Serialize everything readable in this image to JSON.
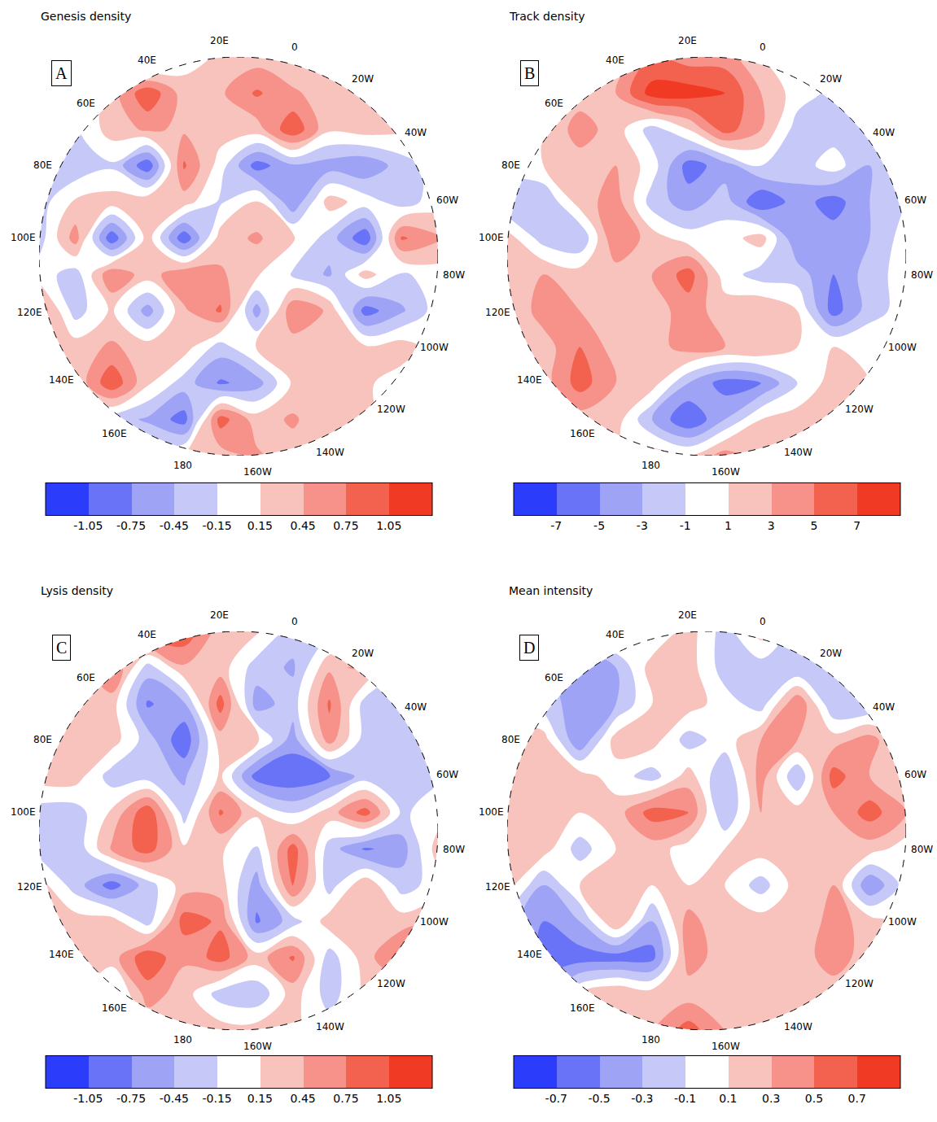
{
  "chart_data": [
    {
      "type": "contour",
      "title": "Genesis density",
      "panel": "A",
      "x": [
        -1,
        -0.818,
        -0.636,
        -0.455,
        -0.273,
        -0.091,
        0.091,
        0.273,
        0.455,
        0.636,
        0.818,
        1
      ],
      "y": [
        1,
        0.818,
        0.636,
        0.455,
        0.273,
        0.091,
        -0.091,
        -0.273,
        -0.455,
        -0.636,
        -0.818,
        -1
      ],
      "values": [
        [
          null,
          null,
          -0.5,
          -0.6,
          0,
          0.2,
          0.3,
          0.2,
          0,
          0.2,
          null,
          null
        ],
        [
          null,
          -0.3,
          0.3,
          1.0,
          0.3,
          0.4,
          0.8,
          0.5,
          0.3,
          0.3,
          0.2,
          null
        ],
        [
          0,
          -0.2,
          0.3,
          0.5,
          0.4,
          0.3,
          0.3,
          1.0,
          0.2,
          0.3,
          0.2,
          0
        ],
        [
          -0.3,
          -0.4,
          -0.2,
          -1.0,
          0.8,
          0,
          -0.9,
          -0.5,
          -0.6,
          -0.7,
          -0.3,
          0
        ],
        [
          -0.3,
          0.2,
          0.3,
          0.4,
          0.3,
          -0.2,
          0.2,
          -0.7,
          0.3,
          0,
          -0.3,
          0
        ],
        [
          -0.3,
          0.6,
          -1.0,
          0.3,
          -1.0,
          0.3,
          0.5,
          0.2,
          -0.3,
          -1.0,
          0.8,
          0.5
        ],
        [
          0,
          -0.3,
          0.7,
          0.3,
          0.7,
          0.5,
          0.2,
          -0.2,
          -0.5,
          0.3,
          -0.2,
          0
        ],
        [
          0.7,
          -0.3,
          0.2,
          -0.6,
          0.4,
          0.8,
          -0.6,
          0.7,
          0.4,
          -0.9,
          -0.5,
          0
        ],
        [
          0,
          0.3,
          0.5,
          0.3,
          0.3,
          -0.3,
          0.2,
          0.3,
          0.3,
          0.2,
          0.3,
          0
        ],
        [
          0,
          0.2,
          1.0,
          0.2,
          -0.3,
          -0.8,
          -0.6,
          0.2,
          0.3,
          0.2,
          0,
          0
        ],
        [
          null,
          0,
          -0.3,
          -0.5,
          -0.9,
          0.9,
          0.3,
          0.5,
          0.2,
          0.2,
          0,
          null
        ],
        [
          null,
          null,
          0,
          0,
          0.2,
          0.3,
          0.5,
          0.3,
          0.2,
          0,
          null,
          null
        ]
      ],
      "xlim": [
        -1,
        1
      ],
      "ylim": [
        -1,
        1
      ],
      "tick_labels": false,
      "colors": [
        "#2b3cfa",
        "#6873f7",
        "#9ea3f5",
        "#c6c8f8",
        "#ffffff",
        "#f8c3bd",
        "#f6928a",
        "#f3624f",
        "#f13a23"
      ],
      "colorbar": {
        "range": [
          -1.35,
          1.35
        ],
        "ticks": [
          -1.05,
          -0.75,
          -0.45,
          -0.15,
          0.15,
          0.45,
          0.75,
          1.05
        ]
      },
      "top_lon": 15,
      "lon_labels": [
        {
          "value": 0,
          "label": "0"
        },
        {
          "value": 20,
          "label": "20E"
        },
        {
          "value": 40,
          "label": "40E"
        },
        {
          "value": 60,
          "label": "60E"
        },
        {
          "value": 80,
          "label": "80E"
        },
        {
          "value": 100,
          "label": "100E"
        },
        {
          "value": 120,
          "label": "120E"
        },
        {
          "value": 140,
          "label": "140E"
        },
        {
          "value": 160,
          "label": "160E"
        },
        {
          "value": 180,
          "label": "180"
        },
        {
          "value": -160,
          "label": "160W"
        },
        {
          "value": -140,
          "label": "140W"
        },
        {
          "value": -120,
          "label": "120W"
        },
        {
          "value": -100,
          "label": "100W"
        },
        {
          "value": -80,
          "label": "80W"
        },
        {
          "value": -60,
          "label": "60W"
        },
        {
          "value": -40,
          "label": "40W"
        },
        {
          "value": -20,
          "label": "20W"
        }
      ]
    },
    {
      "type": "contour",
      "title": "Track density",
      "panel": "B",
      "x": [
        -1,
        -0.818,
        -0.636,
        -0.455,
        -0.273,
        -0.091,
        0.091,
        0.273,
        0.455,
        0.636,
        0.818,
        1
      ],
      "y": [
        1,
        0.818,
        0.636,
        0.455,
        0.273,
        0.091,
        -0.091,
        -0.273,
        -0.455,
        -0.636,
        -0.818,
        -1
      ],
      "values": [
        [
          null,
          null,
          0,
          1,
          5,
          4,
          4,
          1,
          0,
          0,
          null,
          null
        ],
        [
          null,
          0,
          2,
          3,
          8,
          8,
          7,
          3,
          0,
          -1.5,
          -2,
          null
        ],
        [
          0,
          1,
          4,
          2,
          -2,
          1,
          6,
          3,
          -2,
          -2,
          -2,
          0
        ],
        [
          0,
          1,
          2,
          3,
          0,
          -6,
          -4,
          -1,
          -2,
          0,
          -3,
          -2
        ],
        [
          -3,
          -3,
          2,
          4,
          -2,
          -4,
          -2,
          -7,
          -4,
          -6,
          -3,
          -1
        ],
        [
          2,
          -2,
          -3,
          5,
          2,
          0,
          0,
          2,
          -5,
          -4,
          -3,
          0
        ],
        [
          2,
          3,
          2,
          2,
          3,
          6,
          0,
          -2,
          -2,
          -5,
          -2,
          0
        ],
        [
          1,
          4,
          3,
          2,
          2,
          4,
          2,
          3,
          1,
          -6,
          -2,
          0
        ],
        [
          0,
          2,
          5,
          2,
          2,
          4,
          3,
          3,
          1,
          1,
          1,
          0
        ],
        [
          0,
          2,
          6,
          3,
          2,
          -3,
          -6,
          -5,
          -1,
          2,
          1,
          0
        ],
        [
          null,
          1,
          2,
          2,
          -3,
          -7,
          -3,
          1,
          2,
          1,
          0,
          null
        ],
        [
          null,
          null,
          0,
          1,
          2,
          1,
          4,
          2,
          1,
          0,
          null,
          null
        ]
      ],
      "xlim": [
        -1,
        1
      ],
      "ylim": [
        -1,
        1
      ],
      "tick_labels": false,
      "colors": [
        "#2b3cfa",
        "#6873f7",
        "#9ea3f5",
        "#c6c8f8",
        "#ffffff",
        "#f8c3bd",
        "#f6928a",
        "#f3624f",
        "#f13a23"
      ],
      "colorbar": {
        "range": [
          -9,
          9
        ],
        "ticks": [
          -7,
          -5,
          -3,
          -1,
          1,
          3,
          5,
          7
        ]
      },
      "top_lon": 15,
      "lon_labels": [
        {
          "value": 0,
          "label": "0"
        },
        {
          "value": 20,
          "label": "20E"
        },
        {
          "value": 40,
          "label": "40E"
        },
        {
          "value": 60,
          "label": "60E"
        },
        {
          "value": 80,
          "label": "80E"
        },
        {
          "value": 100,
          "label": "100E"
        },
        {
          "value": 120,
          "label": "120E"
        },
        {
          "value": 140,
          "label": "140E"
        },
        {
          "value": 160,
          "label": "160E"
        },
        {
          "value": 180,
          "label": "180"
        },
        {
          "value": -160,
          "label": "160W"
        },
        {
          "value": -140,
          "label": "140W"
        },
        {
          "value": -120,
          "label": "120W"
        },
        {
          "value": -100,
          "label": "100W"
        },
        {
          "value": -80,
          "label": "80W"
        },
        {
          "value": -60,
          "label": "60W"
        },
        {
          "value": -40,
          "label": "40W"
        },
        {
          "value": -20,
          "label": "20W"
        }
      ]
    },
    {
      "type": "contour",
      "title": "Lysis density",
      "panel": "C",
      "x": [
        -1,
        -0.818,
        -0.636,
        -0.455,
        -0.273,
        -0.091,
        0.091,
        0.273,
        0.455,
        0.636,
        0.818,
        1
      ],
      "y": [
        1,
        0.818,
        0.636,
        0.455,
        0.273,
        0.091,
        -0.091,
        -0.273,
        -0.455,
        -0.636,
        -0.818,
        -1
      ],
      "values": [
        [
          null,
          null,
          0.3,
          1.0,
          1.0,
          0.3,
          0.2,
          -0.3,
          -0.3,
          -0.3,
          null,
          null
        ],
        [
          null,
          0.2,
          0.8,
          -0.3,
          0.4,
          0.3,
          -0.3,
          -0.5,
          0.4,
          0.5,
          -0.3,
          null
        ],
        [
          0.3,
          0.3,
          0.3,
          -0.8,
          -0.5,
          0.9,
          -0.6,
          -0.3,
          0.8,
          -0.3,
          -0.3,
          0
        ],
        [
          0.4,
          0.4,
          0.3,
          -0.3,
          -1.0,
          0.3,
          0.2,
          -0.6,
          0.6,
          -0.3,
          -0.3,
          0
        ],
        [
          0.3,
          0.3,
          -0.3,
          -0.3,
          -0.5,
          0.2,
          -0.9,
          -1.0,
          -0.8,
          -0.3,
          -0.3,
          -0.2
        ],
        [
          -0.3,
          -0.3,
          0.2,
          1.0,
          -0.3,
          0.8,
          0.2,
          -0.2,
          0.3,
          0.9,
          -0.2,
          0
        ],
        [
          -0.3,
          -0.4,
          0.5,
          0.9,
          0.2,
          0.2,
          -0.2,
          0.9,
          -0.3,
          -0.8,
          -0.6,
          0.3
        ],
        [
          0.3,
          -0.3,
          -0.9,
          -0.3,
          0.3,
          0.3,
          -0.6,
          0.8,
          -0.3,
          0.4,
          -0.3,
          0
        ],
        [
          0.3,
          0.3,
          0.3,
          -0.3,
          0.9,
          0.7,
          -0.8,
          -0.3,
          0.3,
          0.2,
          0.3,
          0.5
        ],
        [
          0.2,
          0.3,
          0.3,
          1.0,
          0.5,
          0.9,
          0.3,
          0.8,
          -0.3,
          0.3,
          0.9,
          0.3
        ],
        [
          null,
          0.3,
          -0.3,
          0.6,
          0.3,
          -0.3,
          -0.4,
          0.3,
          -0.3,
          0.2,
          0,
          null
        ],
        [
          null,
          null,
          0,
          0.2,
          0.3,
          0.3,
          0.3,
          0.2,
          0,
          0,
          null,
          null
        ]
      ],
      "xlim": [
        -1,
        1
      ],
      "ylim": [
        -1,
        1
      ],
      "tick_labels": false,
      "colors": [
        "#2b3cfa",
        "#6873f7",
        "#9ea3f5",
        "#c6c8f8",
        "#ffffff",
        "#f8c3bd",
        "#f6928a",
        "#f3624f",
        "#f13a23"
      ],
      "colorbar": {
        "range": [
          -1.35,
          1.35
        ],
        "ticks": [
          -1.05,
          -0.75,
          -0.45,
          -0.15,
          0.15,
          0.45,
          0.75,
          1.05
        ]
      },
      "top_lon": 15,
      "lon_labels": [
        {
          "value": 0,
          "label": "0"
        },
        {
          "value": 20,
          "label": "20E"
        },
        {
          "value": 40,
          "label": "40E"
        },
        {
          "value": 60,
          "label": "60E"
        },
        {
          "value": 80,
          "label": "80E"
        },
        {
          "value": 100,
          "label": "100E"
        },
        {
          "value": 120,
          "label": "120E"
        },
        {
          "value": 140,
          "label": "140E"
        },
        {
          "value": 160,
          "label": "160E"
        },
        {
          "value": 180,
          "label": "180"
        },
        {
          "value": -160,
          "label": "160W"
        },
        {
          "value": -140,
          "label": "140W"
        },
        {
          "value": -120,
          "label": "120W"
        },
        {
          "value": -100,
          "label": "100W"
        },
        {
          "value": -80,
          "label": "80W"
        },
        {
          "value": -60,
          "label": "60W"
        },
        {
          "value": -40,
          "label": "40W"
        },
        {
          "value": -20,
          "label": "20W"
        }
      ]
    },
    {
      "type": "contour",
      "title": "Mean intensity",
      "panel": "D",
      "x": [
        -1,
        -0.818,
        -0.636,
        -0.455,
        -0.273,
        -0.091,
        0.091,
        0.273,
        0.455,
        0.636,
        0.818,
        1
      ],
      "y": [
        1,
        0.818,
        0.636,
        0.455,
        0.273,
        0.091,
        -0.091,
        -0.273,
        -0.455,
        -0.636,
        -0.818,
        -1
      ],
      "values": [
        [
          null,
          null,
          0,
          0.2,
          -0.1,
          0.2,
          -0.2,
          0.2,
          -0.2,
          -0.2,
          null,
          null
        ],
        [
          null,
          -0.2,
          -0.5,
          -0.3,
          0.2,
          0.2,
          -0.2,
          -0.2,
          -0.3,
          -0.3,
          0,
          null
        ],
        [
          0,
          -0.2,
          -0.4,
          -0.3,
          0.1,
          0.2,
          0,
          -0.2,
          0.5,
          -0.3,
          -0.3,
          0
        ],
        [
          0.2,
          0.2,
          -0.5,
          0.2,
          0.2,
          -0.2,
          0,
          0.3,
          0.3,
          0.2,
          0.4,
          0
        ],
        [
          0.2,
          0.2,
          0.2,
          0,
          -0.2,
          0.2,
          -0.3,
          0.4,
          -0.3,
          0.6,
          0.3,
          0.2
        ],
        [
          0.2,
          0.2,
          0.1,
          0.2,
          0.6,
          0.5,
          -0.3,
          0.3,
          0.2,
          0.3,
          0.6,
          0.3
        ],
        [
          0.2,
          0.2,
          -0.2,
          0.1,
          0.2,
          0,
          0.1,
          0.2,
          0.2,
          0.2,
          0.2,
          0
        ],
        [
          0.2,
          -0.3,
          0.1,
          0.3,
          0.1,
          0.1,
          0.1,
          -0.2,
          0.2,
          0.3,
          -0.5,
          0
        ],
        [
          -0.2,
          -0.5,
          -0.3,
          0.3,
          -0.3,
          0.4,
          0.1,
          0.2,
          0.1,
          0.4,
          0.2,
          0
        ],
        [
          0,
          -0.6,
          -0.6,
          -0.6,
          -0.6,
          0.4,
          0.2,
          0.2,
          0.2,
          0.4,
          0.2,
          0
        ],
        [
          null,
          -0.3,
          0.1,
          0.3,
          0.2,
          0.2,
          0.2,
          0.2,
          0.2,
          0.2,
          0,
          null
        ],
        [
          null,
          null,
          0.1,
          0.2,
          0.3,
          0.6,
          0.3,
          0.2,
          0.1,
          0,
          null,
          null
        ]
      ],
      "xlim": [
        -1,
        1
      ],
      "ylim": [
        -1,
        1
      ],
      "tick_labels": false,
      "colors": [
        "#2b3cfa",
        "#6873f7",
        "#9ea3f5",
        "#c6c8f8",
        "#ffffff",
        "#f8c3bd",
        "#f6928a",
        "#f3624f",
        "#f13a23"
      ],
      "colorbar": {
        "range": [
          -0.9,
          0.9
        ],
        "ticks": [
          -0.7,
          -0.5,
          -0.3,
          -0.1,
          0.1,
          0.3,
          0.5,
          0.7
        ]
      },
      "top_lon": 15,
      "lon_labels": [
        {
          "value": 0,
          "label": "0"
        },
        {
          "value": 20,
          "label": "20E"
        },
        {
          "value": 40,
          "label": "40E"
        },
        {
          "value": 60,
          "label": "60E"
        },
        {
          "value": 80,
          "label": "80E"
        },
        {
          "value": 100,
          "label": "100E"
        },
        {
          "value": 120,
          "label": "120E"
        },
        {
          "value": 140,
          "label": "140E"
        },
        {
          "value": 160,
          "label": "160E"
        },
        {
          "value": 180,
          "label": "180"
        },
        {
          "value": -160,
          "label": "160W"
        },
        {
          "value": -140,
          "label": "140W"
        },
        {
          "value": -120,
          "label": "120W"
        },
        {
          "value": -100,
          "label": "100W"
        },
        {
          "value": -80,
          "label": "80W"
        },
        {
          "value": -60,
          "label": "60W"
        },
        {
          "value": -40,
          "label": "40W"
        },
        {
          "value": -20,
          "label": "20W"
        }
      ]
    }
  ]
}
